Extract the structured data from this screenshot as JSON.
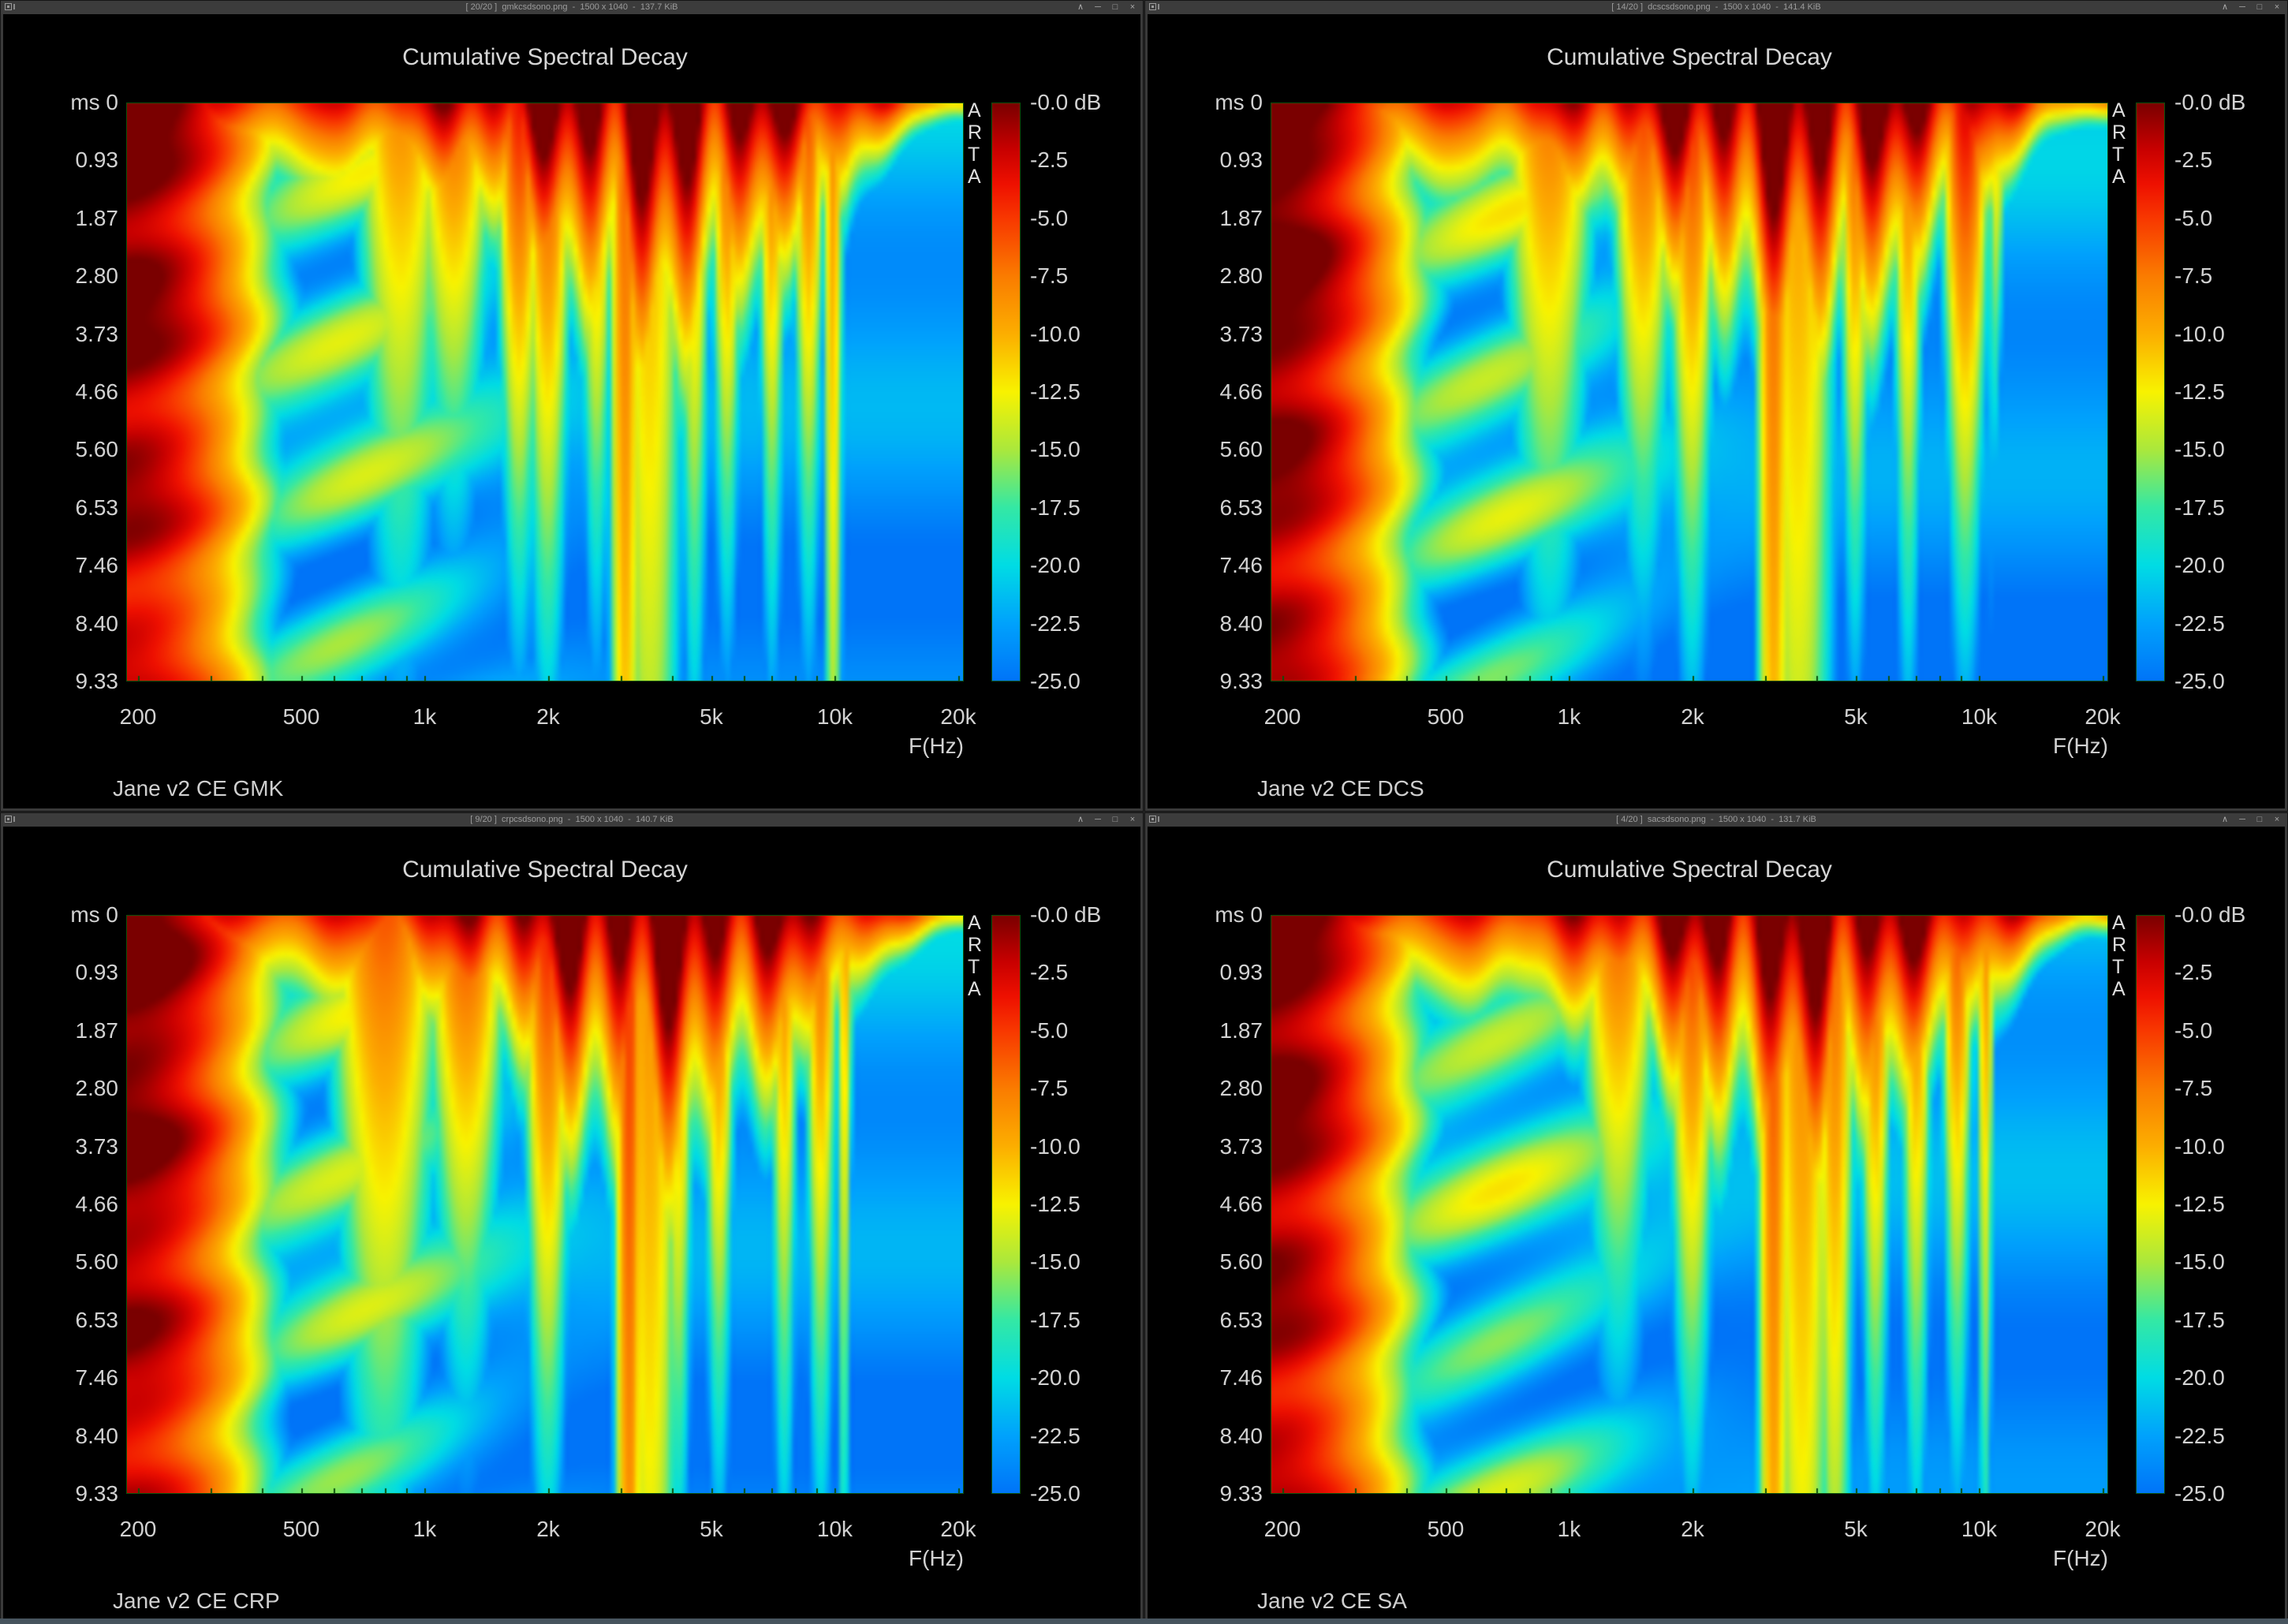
{
  "colors": {
    "plot_background": "#0074f8",
    "frame_green": "#0c520c",
    "window_chrome": "#3c3c3c",
    "desktop_gap": "#262626",
    "bottom_strip": "#47545e"
  },
  "titlebar": {
    "buttons": [
      {
        "name": "rollup",
        "glyph": "∧"
      },
      {
        "name": "minimize",
        "glyph": "─"
      },
      {
        "name": "maximize",
        "glyph": "□"
      },
      {
        "name": "close",
        "glyph": "×"
      }
    ]
  },
  "chart_common": {
    "title": "Cumulative Spectral Decay",
    "watermark_letters": [
      "A",
      "R",
      "T",
      "A"
    ],
    "y_tick_labels": [
      "ms 0",
      "0.93",
      "1.87",
      "2.80",
      "3.73",
      "4.66",
      "5.60",
      "6.53",
      "7.46",
      "8.40",
      "9.33"
    ],
    "x_ticks": [
      {
        "label": "200",
        "f": 200
      },
      {
        "label": "500",
        "f": 500
      },
      {
        "label": "1k",
        "f": 1000
      },
      {
        "label": "2k",
        "f": 2000
      },
      {
        "label": "5k",
        "f": 5000
      },
      {
        "label": "10k",
        "f": 10000
      },
      {
        "label": "20k",
        "f": 20000
      }
    ],
    "x_axis_label": "F(Hz)",
    "colorbar_tick_labels": [
      "-0.0 dB",
      "-2.5",
      "-5.0",
      "-7.5",
      "-10.0",
      "-12.5",
      "-15.0",
      "-17.5",
      "-20.0",
      "-22.5",
      "-25.0"
    ],
    "colormap_stops": [
      [
        0,
        "#7a0000"
      ],
      [
        -2,
        "#c80000"
      ],
      [
        -3.5,
        "#ee1000"
      ],
      [
        -5,
        "#f83800"
      ],
      [
        -7.5,
        "#fa7c00"
      ],
      [
        -10,
        "#fcae00"
      ],
      [
        -12.5,
        "#f8f200"
      ],
      [
        -15,
        "#aae83c"
      ],
      [
        -17.5,
        "#34e8a4"
      ],
      [
        -20,
        "#00dce4"
      ],
      [
        -22.5,
        "#00a2fc"
      ],
      [
        -25,
        "#0074f8"
      ]
    ],
    "minor_tick_freqs": [
      200,
      300,
      400,
      500,
      600,
      700,
      800,
      900,
      1000,
      2000,
      3000,
      4000,
      5000,
      6000,
      7000,
      8000,
      9000,
      10000,
      20000
    ]
  },
  "windows": [
    {
      "title": "[ 20/20 ]  gmkcsdsono.png  -  1500 x 1040  -  137.7 KiB",
      "caption": "Jane v2 CE GMK",
      "heatmap": {
        "ph": [
          0.3,
          1.7,
          0.9,
          2.4
        ],
        "combPh": 0.4,
        "combAmp": 4.6,
        "leftBoost": 0,
        "res": [
          [
            3.49,
            -6,
            0.5,
            0.02
          ],
          [
            3.55,
            -9,
            0.55,
            0.045
          ],
          [
            4.0,
            -8,
            0.7,
            0.013
          ],
          [
            3.3,
            -4,
            1.7,
            0.03
          ],
          [
            3.23,
            -3.5,
            2.0,
            0.028
          ],
          [
            3.42,
            -6,
            1.8,
            0.022
          ],
          [
            3.66,
            -7,
            1.4,
            0.02
          ],
          [
            3.74,
            -5,
            1.9,
            0.02
          ],
          [
            3.85,
            -6,
            1.7,
            0.018
          ],
          [
            3.94,
            -5.5,
            1.8,
            0.02
          ],
          [
            3.07,
            -6,
            2.2,
            0.05
          ],
          [
            2.94,
            -8,
            1.5,
            0.06
          ]
        ]
      }
    },
    {
      "title": "[ 14/20 ]  dcscsdsono.png  -  1500 x 1040  -  141.4 KiB",
      "caption": "Jane v2 CE DCS",
      "heatmap": {
        "ph": [
          1.2,
          0.4,
          2.2,
          0.8
        ],
        "combPh": 1.9,
        "combAmp": 4.8,
        "leftBoost": 0.8,
        "res": [
          [
            3.5,
            -5.5,
            0.5,
            0.022
          ],
          [
            3.56,
            -8.5,
            0.55,
            0.05
          ],
          [
            3.97,
            -2.5,
            2.0,
            0.028
          ],
          [
            4.05,
            -9,
            0.9,
            0.012
          ],
          [
            3.3,
            -4,
            1.8,
            0.03
          ],
          [
            3.6,
            -6,
            1.5,
            0.02
          ],
          [
            3.7,
            -5,
            1.8,
            0.02
          ],
          [
            3.83,
            -6,
            1.6,
            0.02
          ],
          [
            3.18,
            -5,
            2.0,
            0.04
          ],
          [
            2.95,
            -7,
            1.6,
            0.06
          ]
        ]
      }
    },
    {
      "title": "[ 9/20 ]  crpcsdsono.png  -  1500 x 1040  -  140.7 KiB",
      "caption": "Jane v2 CE CRP",
      "heatmap": {
        "ph": [
          2.1,
          1.1,
          0.2,
          1.5
        ],
        "combPh": 3.1,
        "combAmp": 4.5,
        "leftBoost": 0.4,
        "res": [
          [
            3.5,
            -4.5,
            0.42,
            0.018
          ],
          [
            3.55,
            -8,
            0.5,
            0.04
          ],
          [
            3.3,
            -3.5,
            1.7,
            0.03
          ],
          [
            3.62,
            -6,
            1.4,
            0.02
          ],
          [
            3.72,
            -5,
            1.7,
            0.02
          ],
          [
            3.88,
            -7,
            1.4,
            0.018
          ],
          [
            3.97,
            -6,
            1.5,
            0.02
          ],
          [
            3.1,
            -5,
            2.0,
            0.05
          ],
          [
            2.9,
            -6,
            1.4,
            0.07
          ],
          [
            4.03,
            -9,
            0.9,
            0.012
          ]
        ]
      }
    },
    {
      "title": "[ 4/20 ]  sacsdsono.png  -  1500 x 1040  -  131.7 KiB",
      "caption": "Jane v2 CE SA",
      "heatmap": {
        "ph": [
          0.8,
          2.6,
          1.4,
          0.5
        ],
        "combPh": 2.5,
        "combAmp": 4.6,
        "leftBoost": 0.2,
        "res": [
          [
            3.5,
            -5,
            0.5,
            0.02
          ],
          [
            3.57,
            -7,
            0.6,
            0.04
          ],
          [
            3.65,
            -6,
            0.9,
            0.025
          ],
          [
            3.3,
            -4,
            1.8,
            0.03
          ],
          [
            3.75,
            -5,
            1.6,
            0.02
          ],
          [
            3.85,
            -6,
            1.5,
            0.02
          ],
          [
            3.95,
            -5.5,
            1.7,
            0.02
          ],
          [
            3.12,
            -6,
            2.0,
            0.05
          ],
          [
            4.02,
            -8,
            1.1,
            0.012
          ]
        ]
      }
    }
  ],
  "chart_data": {
    "type": "heatmap",
    "title": "Cumulative Spectral Decay",
    "xlabel": "F(Hz)",
    "x_scale": "log",
    "x_ticks": [
      "200",
      "500",
      "1k",
      "2k",
      "5k",
      "10k",
      "20k"
    ],
    "ylabel": "ms",
    "y_ticks": [
      0,
      0.93,
      1.87,
      2.8,
      3.73,
      4.66,
      5.6,
      6.53,
      7.46,
      8.4,
      9.33
    ],
    "colorbar_ticks_db": [
      0,
      -2.5,
      -5.0,
      -7.5,
      -10.0,
      -12.5,
      -15.0,
      -17.5,
      -20.0,
      -22.5,
      -25.0
    ],
    "legend": "ARTA",
    "panels": [
      "Jane v2 CE GMK",
      "Jane v2 CE DCS",
      "Jane v2 CE CRP",
      "Jane v2 CE SA"
    ],
    "description": "Four ARTA CSD sonograms; level in dB (0 to -25, jet colormap) versus frequency (200 Hz - 20 kHz, log) and decay time (0 - 9.33 ms). Strong slow-decaying low-frequency ridge near 200 Hz, fast-decaying broadband onset band at t=0 with resonant red streaks between 1.5k and 10k, and persistent narrow resonances near 3.2 kHz and 10 kHz."
  }
}
